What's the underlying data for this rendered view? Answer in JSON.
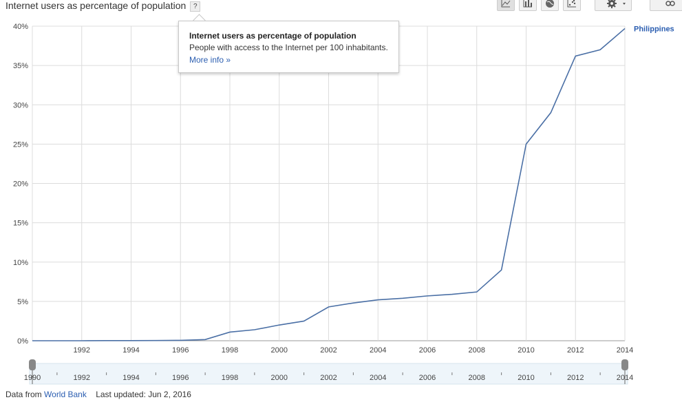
{
  "header": {
    "title": "Internet users as percentage of population",
    "help_label": "?"
  },
  "toolbar": {
    "buttons": [
      {
        "icon": "line-chart-icon"
      },
      {
        "icon": "bar-chart-icon"
      },
      {
        "icon": "globe-map-icon"
      },
      {
        "icon": "scatter-chart-icon"
      }
    ],
    "settings_icon": "gear-icon",
    "link_icon": "link-icon"
  },
  "tooltip": {
    "title": "Internet users as percentage of population",
    "description": "People with access to the Internet per 100 inhabitants.",
    "more_info": "More info »"
  },
  "footer": {
    "source_prefix": "Data from",
    "source": "World Bank",
    "updated": "Last updated: Jun 2, 2016"
  },
  "colors": {
    "series": "#4a6fa5",
    "grid": "#dcdcdc",
    "link": "#2a5db0"
  },
  "chart_data": {
    "type": "line",
    "title": "Internet users as percentage of population",
    "xlabel": "",
    "ylabel": "",
    "x": [
      1990,
      1991,
      1992,
      1993,
      1994,
      1995,
      1996,
      1997,
      1998,
      1999,
      2000,
      2001,
      2002,
      2003,
      2004,
      2005,
      2006,
      2007,
      2008,
      2009,
      2010,
      2011,
      2012,
      2013,
      2014
    ],
    "series": [
      {
        "name": "Philippines",
        "values": [
          0,
          0,
          0,
          0.02,
          0.02,
          0.03,
          0.05,
          0.15,
          1.1,
          1.4,
          2.0,
          2.5,
          4.3,
          4.8,
          5.2,
          5.4,
          5.7,
          5.9,
          6.2,
          9.0,
          25.0,
          29.0,
          36.2,
          37.0,
          39.7
        ]
      }
    ],
    "xlim": [
      1990,
      2014
    ],
    "ylim": [
      0,
      40
    ],
    "yticks": [
      "0%",
      "5%",
      "10%",
      "15%",
      "20%",
      "25%",
      "30%",
      "35%",
      "40%"
    ],
    "ytick_values": [
      0,
      5,
      10,
      15,
      20,
      25,
      30,
      35,
      40
    ],
    "xticks": [
      "1992",
      "1994",
      "1996",
      "1998",
      "2000",
      "2002",
      "2004",
      "2006",
      "2008",
      "2010",
      "2012",
      "2014"
    ],
    "xtick_values": [
      1992,
      1994,
      1996,
      1998,
      2000,
      2002,
      2004,
      2006,
      2008,
      2010,
      2012,
      2014
    ],
    "grid": true,
    "legend": "end-of-line label",
    "range_slider": {
      "start": 1990,
      "end": 2014,
      "labels": [
        "1990",
        "1992",
        "1994",
        "1996",
        "1998",
        "2000",
        "2002",
        "2004",
        "2006",
        "2008",
        "2010",
        "2012",
        "2014"
      ],
      "label_values": [
        1990,
        1992,
        1994,
        1996,
        1998,
        2000,
        2002,
        2004,
        2006,
        2008,
        2010,
        2012,
        2014
      ]
    }
  }
}
